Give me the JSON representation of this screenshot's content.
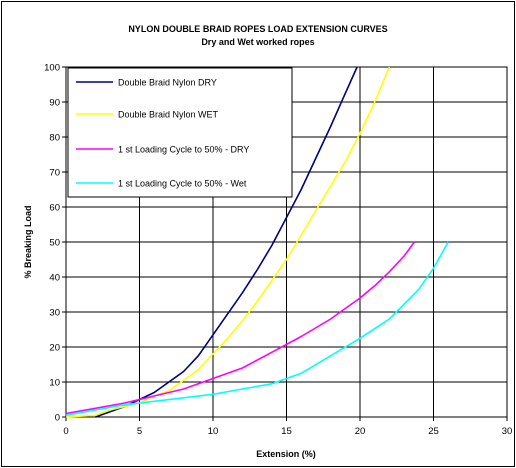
{
  "chart_data": {
    "type": "line",
    "title": "NYLON DOUBLE BRAID ROPES LOAD EXTENSION  CURVES",
    "subtitle": "Dry and Wet worked ropes",
    "xlabel": "Extension (%)",
    "ylabel": "% Breaking Load",
    "xlim": [
      0,
      30
    ],
    "ylim": [
      0,
      100
    ],
    "xticks": [
      "0",
      "5",
      "10",
      "15",
      "20",
      "25",
      "30"
    ],
    "yticks": [
      "0",
      "10",
      "20",
      "30",
      "40",
      "50",
      "60",
      "70",
      "80",
      "90",
      "100"
    ],
    "grid": true,
    "legend_position": "top-left",
    "series": [
      {
        "name": "Double Braid Nylon DRY",
        "color": "#000080",
        "points": [
          [
            2,
            0
          ],
          [
            3,
            1.5
          ],
          [
            4,
            3
          ],
          [
            5,
            5
          ],
          [
            6,
            7
          ],
          [
            7,
            10
          ],
          [
            8,
            13
          ],
          [
            9,
            17.5
          ],
          [
            10,
            23.5
          ],
          [
            11,
            29.5
          ],
          [
            12,
            35.5
          ],
          [
            13,
            42
          ],
          [
            14,
            49
          ],
          [
            15,
            57
          ],
          [
            16,
            65
          ],
          [
            17,
            74
          ],
          [
            18,
            83
          ],
          [
            19,
            92.5
          ],
          [
            19.8,
            100
          ]
        ]
      },
      {
        "name": "Double Braid Nylon WET",
        "color": "#ffff00",
        "points": [
          [
            0,
            0
          ],
          [
            2,
            0.5
          ],
          [
            3,
            2
          ],
          [
            4,
            3
          ],
          [
            5,
            4
          ],
          [
            6,
            6
          ],
          [
            7,
            7.5
          ],
          [
            8,
            10.5
          ],
          [
            9,
            13.5
          ],
          [
            10,
            18
          ],
          [
            11,
            22.5
          ],
          [
            12,
            27.5
          ],
          [
            13,
            33
          ],
          [
            14,
            39
          ],
          [
            15,
            45
          ],
          [
            16,
            52
          ],
          [
            17,
            59
          ],
          [
            18,
            66
          ],
          [
            19,
            73
          ],
          [
            20,
            81
          ],
          [
            21,
            90
          ],
          [
            22,
            100
          ]
        ]
      },
      {
        "name": "1 st Loading Cycle to 50% - DRY",
        "color": "#ff00ff",
        "points": [
          [
            0,
            1
          ],
          [
            2,
            2.5
          ],
          [
            4,
            4
          ],
          [
            6,
            6
          ],
          [
            8,
            8
          ],
          [
            10,
            11
          ],
          [
            12,
            14
          ],
          [
            14,
            18.5
          ],
          [
            16,
            23
          ],
          [
            18,
            28
          ],
          [
            20,
            34
          ],
          [
            21,
            37.5
          ],
          [
            22,
            41.5
          ],
          [
            23,
            46
          ],
          [
            23.7,
            50
          ]
        ]
      },
      {
        "name": "1 st Loading Cycle to 50% - Wet",
        "color": "#00ffff",
        "points": [
          [
            0,
            0.5
          ],
          [
            2,
            2
          ],
          [
            4,
            3.5
          ],
          [
            6,
            4.5
          ],
          [
            8,
            5.5
          ],
          [
            10,
            6.5
          ],
          [
            12,
            8
          ],
          [
            14,
            9.5
          ],
          [
            15,
            11
          ],
          [
            16,
            12.5
          ],
          [
            18,
            17.5
          ],
          [
            20,
            22.5
          ],
          [
            22,
            28
          ],
          [
            24,
            36.5
          ],
          [
            25,
            42.5
          ],
          [
            26,
            50
          ]
        ]
      }
    ]
  }
}
